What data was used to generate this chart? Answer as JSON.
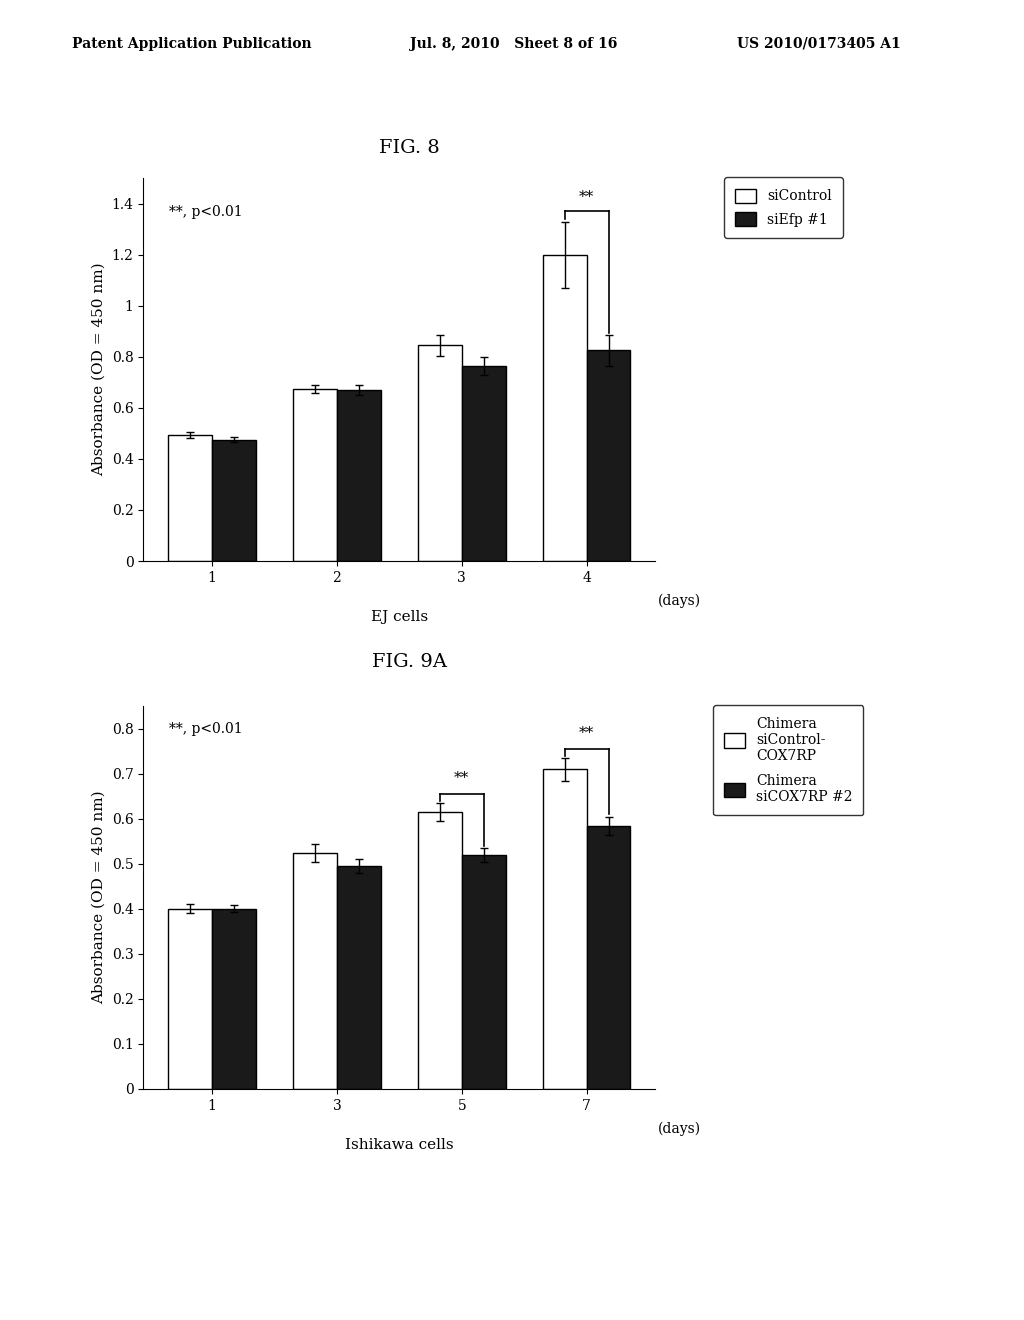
{
  "header_left": "Patent Application Publication",
  "header_mid": "Jul. 8, 2010   Sheet 8 of 16",
  "header_right": "US 2010/0173405 A1",
  "fig8_title": "FIG. 8",
  "fig8_xlabel": "EJ cells",
  "fig8_ylabel": "Absorbance (OD = 450 nm)",
  "fig8_days": [
    1,
    2,
    3,
    4
  ],
  "fig8_control_vals": [
    0.495,
    0.675,
    0.845,
    1.2
  ],
  "fig8_control_err": [
    0.012,
    0.015,
    0.04,
    0.13
  ],
  "fig8_siefp_vals": [
    0.475,
    0.67,
    0.765,
    0.825
  ],
  "fig8_siefp_err": [
    0.01,
    0.018,
    0.035,
    0.06
  ],
  "fig8_ylim": [
    0,
    1.5
  ],
  "fig8_yticks": [
    0,
    0.2,
    0.4,
    0.6,
    0.8,
    1.0,
    1.2,
    1.4
  ],
  "fig8_sig_day_idx": 3,
  "fig8_annotation": "**, p<0.01",
  "fig8_legend1": "siControl",
  "fig8_legend2": "siEfp #1",
  "fig9a_title": "FIG. 9A",
  "fig9a_xlabel": "Ishikawa cells",
  "fig9a_ylabel": "Absorbance (OD = 450 nm)",
  "fig9a_days": [
    1,
    3,
    5,
    7
  ],
  "fig9a_control_vals": [
    0.4,
    0.525,
    0.615,
    0.71
  ],
  "fig9a_control_err": [
    0.01,
    0.02,
    0.02,
    0.025
  ],
  "fig9a_sicox_vals": [
    0.4,
    0.495,
    0.52,
    0.585
  ],
  "fig9a_sicox_err": [
    0.008,
    0.015,
    0.015,
    0.02
  ],
  "fig9a_ylim": [
    0,
    0.85
  ],
  "fig9a_yticks": [
    0,
    0.1,
    0.2,
    0.3,
    0.4,
    0.5,
    0.6,
    0.7,
    0.8
  ],
  "fig9a_sig_day_idxs": [
    2,
    3
  ],
  "fig9a_annotation": "**, p<0.01",
  "fig9a_legend1": "Chimera\nsiControl-\nCOX7RP",
  "fig9a_legend2": "Chimera\nsiCOX7RP #2",
  "bar_width": 0.35,
  "white_color": "#ffffff",
  "black_color": "#1a1a1a",
  "bg_color": "#ffffff",
  "edge_color": "#000000",
  "font_size_header": 10,
  "font_size_title": 14,
  "font_size_label": 11,
  "font_size_tick": 10,
  "font_size_legend": 10,
  "font_size_annot": 10
}
